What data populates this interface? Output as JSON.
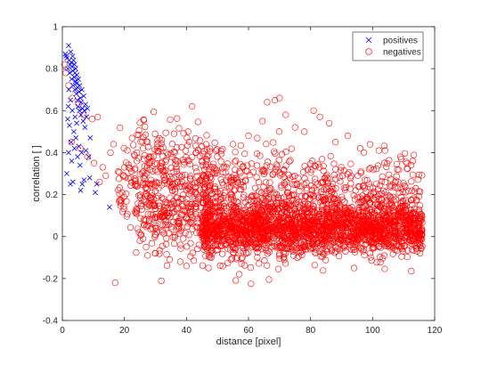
{
  "chart_data": {
    "type": "scatter",
    "xlabel": "distance [pixel]",
    "ylabel": "correlation [ ]",
    "xlim": [
      0,
      120
    ],
    "ylim": [
      -0.4,
      1
    ],
    "xticks": [
      "0",
      "20",
      "40",
      "60",
      "80",
      "100",
      "120"
    ],
    "yticks": [
      "-0.4",
      "-0.2",
      "0",
      "0.2",
      "0.4",
      "0.6",
      "0.8",
      "1"
    ],
    "grid": false,
    "legend": {
      "placement": "top-right"
    },
    "series": [
      {
        "name": "positives",
        "marker": "x",
        "color": "#0000ff",
        "points": [
          [
            1.0,
            0.87
          ],
          [
            1.2,
            0.86
          ],
          [
            1.5,
            0.85
          ],
          [
            1.8,
            0.8
          ],
          [
            2.0,
            0.91
          ],
          [
            2.2,
            0.84
          ],
          [
            2.4,
            0.78
          ],
          [
            2.5,
            0.82
          ],
          [
            2.7,
            0.88
          ],
          [
            2.9,
            0.83
          ],
          [
            3.0,
            0.75
          ],
          [
            3.1,
            0.81
          ],
          [
            3.3,
            0.86
          ],
          [
            3.4,
            0.79
          ],
          [
            3.5,
            0.72
          ],
          [
            3.6,
            0.84
          ],
          [
            3.8,
            0.76
          ],
          [
            3.9,
            0.82
          ],
          [
            4.0,
            0.7
          ],
          [
            4.1,
            0.78
          ],
          [
            4.2,
            0.74
          ],
          [
            4.3,
            0.8
          ],
          [
            4.5,
            0.68
          ],
          [
            4.6,
            0.73
          ],
          [
            4.7,
            0.77
          ],
          [
            4.8,
            0.65
          ],
          [
            5.0,
            0.71
          ],
          [
            5.1,
            0.62
          ],
          [
            5.2,
            0.75
          ],
          [
            5.4,
            0.69
          ],
          [
            5.5,
            0.6
          ],
          [
            5.6,
            0.72
          ],
          [
            5.8,
            0.66
          ],
          [
            6.0,
            0.58
          ],
          [
            6.1,
            0.64
          ],
          [
            6.3,
            0.7
          ],
          [
            6.5,
            0.61
          ],
          [
            6.7,
            0.55
          ],
          [
            6.9,
            0.67
          ],
          [
            7.1,
            0.6
          ],
          [
            7.3,
            0.52
          ],
          [
            7.5,
            0.63
          ],
          [
            7.8,
            0.57
          ],
          [
            8.1,
            0.61
          ],
          [
            2.1,
            0.7
          ],
          [
            2.6,
            0.65
          ],
          [
            3.2,
            0.6
          ],
          [
            1.7,
            0.56
          ],
          [
            2.3,
            0.53
          ],
          [
            3.7,
            0.5
          ],
          [
            4.4,
            0.47
          ],
          [
            2.8,
            0.45
          ],
          [
            3.9,
            0.42
          ],
          [
            5.3,
            0.43
          ],
          [
            2.0,
            0.4
          ],
          [
            4.9,
            0.38
          ],
          [
            6.2,
            0.4
          ],
          [
            3.0,
            0.36
          ],
          [
            1.4,
            0.3
          ],
          [
            5.7,
            0.34
          ],
          [
            2.6,
            0.25
          ],
          [
            3.4,
            0.26
          ],
          [
            5.9,
            0.22
          ],
          [
            7.0,
            0.27
          ],
          [
            6.4,
            0.25
          ],
          [
            8.5,
            0.38
          ],
          [
            4.6,
            0.54
          ],
          [
            1.9,
            0.62
          ],
          [
            9.0,
            0.47
          ],
          [
            8.8,
            0.28
          ],
          [
            11.1,
            0.25
          ],
          [
            10.6,
            0.21
          ],
          [
            15.2,
            0.14
          ],
          [
            7.6,
            0.41
          ],
          [
            4.1,
            0.57
          ]
        ]
      },
      {
        "name": "negatives",
        "marker": "circle",
        "color": "#ff0000",
        "points": [
          [
            0.7,
            0.82
          ],
          [
            1.1,
            0.78
          ],
          [
            2.0,
            0.72
          ],
          [
            3.2,
            0.66
          ],
          [
            5.2,
            0.63
          ],
          [
            6.8,
            0.58
          ],
          [
            9.6,
            0.56
          ],
          [
            11.4,
            0.57
          ],
          [
            3.0,
            0.45
          ],
          [
            5.8,
            0.42
          ],
          [
            8.1,
            0.38
          ],
          [
            10.2,
            0.35
          ],
          [
            13.0,
            0.33
          ],
          [
            15.5,
            0.4
          ],
          [
            16.5,
            0.44
          ],
          [
            14.0,
            0.29
          ],
          [
            12.0,
            0.26
          ],
          [
            18.0,
            0.31
          ],
          [
            20.0,
            0.33
          ],
          [
            22.0,
            0.28
          ],
          [
            24.0,
            0.36
          ],
          [
            26.0,
            0.42
          ],
          [
            28.0,
            0.38
          ],
          [
            17.0,
            -0.22
          ],
          [
            25.0,
            -0.02
          ],
          [
            27.0,
            -0.05
          ],
          [
            30.0,
            -0.08
          ],
          [
            38.0,
            -0.12
          ],
          [
            40.0,
            -0.14
          ],
          [
            44.0,
            -0.04
          ],
          [
            36.0,
            0.49
          ],
          [
            32.0,
            0.46
          ],
          [
            40.5,
            0.5
          ],
          [
            55.0,
            0.44
          ],
          [
            60.0,
            0.48
          ],
          [
            64.5,
            0.55
          ],
          [
            66.0,
            0.64
          ],
          [
            68.5,
            0.65
          ],
          [
            70.0,
            0.66
          ],
          [
            72.0,
            0.58
          ],
          [
            75.0,
            0.52
          ],
          [
            78.0,
            0.5
          ],
          [
            81.0,
            0.6
          ],
          [
            83.0,
            0.57
          ],
          [
            86.0,
            0.54
          ],
          [
            88.0,
            0.45
          ],
          [
            92.0,
            0.48
          ],
          [
            96.0,
            0.42
          ],
          [
            102.0,
            0.41
          ],
          [
            104.0,
            0.41
          ],
          [
            109.0,
            0.38
          ],
          [
            113.0,
            0.36
          ],
          [
            94.0,
            -0.15
          ],
          [
            84.0,
            -0.08
          ],
          [
            58.0,
            -0.1
          ],
          [
            48.0,
            -0.1
          ],
          [
            70.0,
            -0.09
          ],
          [
            100.0,
            -0.05
          ],
          [
            110.0,
            -0.02
          ]
        ],
        "clusters": [
          {
            "x": [
              18,
              48
            ],
            "y_center": 0.26,
            "y_spread": 0.14,
            "count": 320
          },
          {
            "x": [
              25,
              45
            ],
            "y_center": 0.12,
            "y_spread": 0.12,
            "count": 180
          },
          {
            "x": [
              45,
              75
            ],
            "y_center": 0.15,
            "y_spread": 0.14,
            "count": 480
          },
          {
            "x": [
              75,
              116
            ],
            "y_center": 0.14,
            "y_spread": 0.12,
            "count": 480
          },
          {
            "x": [
              45,
              116
            ],
            "y_center": 0.04,
            "y_spread": 0.055,
            "count": 1700
          }
        ]
      }
    ]
  }
}
